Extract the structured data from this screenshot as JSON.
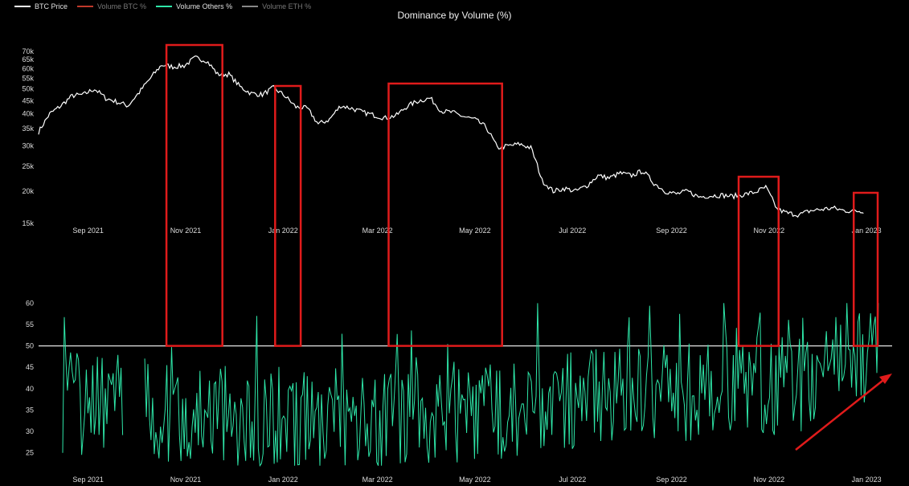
{
  "chart_data": {
    "type": "line",
    "title": "Dominance by Volume (%)",
    "legend": [
      {
        "name": "BTC Price",
        "color": "#ffffff",
        "active": true
      },
      {
        "name": "Volume BTC %",
        "color": "#c0392b",
        "active": false
      },
      {
        "name": "Volume Others %",
        "color": "#2ee6a8",
        "active": true
      },
      {
        "name": "Volume ETH %",
        "color": "#888888",
        "active": false
      }
    ],
    "legend_placement": "top-left",
    "x_tick_labels": [
      "Sep 2021",
      "Nov 2021",
      "Jan 2022",
      "Mar 2022",
      "May 2022",
      "Jul 2022",
      "Sep 2022",
      "Nov 2022",
      "Jan 2023"
    ],
    "top_panel": {
      "series_name": "BTC Price",
      "scale": "log",
      "ylim": [
        15000,
        72000
      ],
      "y_tick_labels": [
        "70k",
        "65k",
        "60k",
        "55k",
        "50k",
        "45k",
        "40k",
        "35k",
        "30k",
        "25k",
        "20k",
        "15k"
      ],
      "y_tick_values": [
        70000,
        65000,
        60000,
        55000,
        50000,
        45000,
        40000,
        35000,
        30000,
        25000,
        20000,
        15000
      ],
      "x": [
        "2021-08-01",
        "2021-08-08",
        "2021-08-15",
        "2021-08-22",
        "2021-08-29",
        "2021-09-05",
        "2021-09-12",
        "2021-09-19",
        "2021-09-26",
        "2021-10-03",
        "2021-10-10",
        "2021-10-17",
        "2021-10-24",
        "2021-10-31",
        "2021-11-07",
        "2021-11-14",
        "2021-11-21",
        "2021-11-28",
        "2021-12-05",
        "2021-12-12",
        "2021-12-19",
        "2021-12-26",
        "2022-01-02",
        "2022-01-09",
        "2022-01-16",
        "2022-01-23",
        "2022-01-30",
        "2022-02-06",
        "2022-02-13",
        "2022-02-20",
        "2022-02-27",
        "2022-03-06",
        "2022-03-13",
        "2022-03-20",
        "2022-03-27",
        "2022-04-03",
        "2022-04-10",
        "2022-04-17",
        "2022-04-24",
        "2022-05-01",
        "2022-05-08",
        "2022-05-15",
        "2022-05-22",
        "2022-05-29",
        "2022-06-05",
        "2022-06-12",
        "2022-06-19",
        "2022-06-26",
        "2022-07-03",
        "2022-07-10",
        "2022-07-17",
        "2022-07-24",
        "2022-07-31",
        "2022-08-07",
        "2022-08-14",
        "2022-08-21",
        "2022-08-28",
        "2022-09-04",
        "2022-09-11",
        "2022-09-18",
        "2022-09-25",
        "2022-10-02",
        "2022-10-09",
        "2022-10-16",
        "2022-10-23",
        "2022-10-30",
        "2022-11-06",
        "2022-11-13",
        "2022-11-20",
        "2022-11-27",
        "2022-12-04",
        "2022-12-11",
        "2022-12-18",
        "2022-12-25"
      ],
      "values": [
        34000,
        40000,
        43000,
        47000,
        47500,
        50000,
        46000,
        44500,
        43000,
        48500,
        55000,
        62000,
        61000,
        61500,
        66000,
        64500,
        57000,
        57000,
        51000,
        48000,
        47500,
        50500,
        47000,
        42500,
        42000,
        36500,
        38000,
        43000,
        42000,
        40500,
        39500,
        38500,
        39500,
        43000,
        45000,
        46000,
        41000,
        40500,
        39000,
        38000,
        35500,
        29500,
        30000,
        30500,
        29500,
        22000,
        20000,
        20500,
        20000,
        21000,
        23000,
        22500,
        23500,
        23000,
        24000,
        21500,
        20000,
        19500,
        20000,
        19000,
        19200,
        19300,
        19100,
        19400,
        19800,
        20700,
        17000,
        16400,
        16200,
        16800,
        17000,
        17200,
        16800,
        16750
      ]
    },
    "bottom_panel": {
      "series_name": "Volume Others %",
      "ylim": [
        21,
        61
      ],
      "y_tick_labels": [
        "60",
        "55",
        "50",
        "45",
        "40",
        "35",
        "30",
        "25"
      ],
      "y_tick_values": [
        60,
        55,
        50,
        45,
        40,
        35,
        30,
        25
      ],
      "reference_line": 50,
      "x_start": "2021-08-01",
      "x_end": "2022-12-31"
    },
    "annotations": [
      {
        "type": "highlight-box",
        "color": "#e01b1b",
        "from": "2021-10-20",
        "to": "2021-11-24"
      },
      {
        "type": "highlight-box",
        "color": "#e01b1b",
        "from": "2021-12-27",
        "to": "2022-01-12"
      },
      {
        "type": "highlight-box",
        "color": "#e01b1b",
        "from": "2022-03-08",
        "to": "2022-05-18"
      },
      {
        "type": "highlight-box",
        "color": "#e01b1b",
        "from": "2022-10-13",
        "to": "2022-11-07"
      },
      {
        "type": "highlight-box",
        "color": "#e01b1b",
        "from": "2022-12-24",
        "to": "2023-01-08"
      },
      {
        "type": "trend-arrow",
        "color": "#e01b1b",
        "direction": "up-right"
      }
    ],
    "grid": false,
    "colors": {
      "background": "#000000",
      "price": "#ffffff",
      "others": "#2ee6a8",
      "highlight": "#e01b1b",
      "reference": "#d9d9d9"
    }
  }
}
